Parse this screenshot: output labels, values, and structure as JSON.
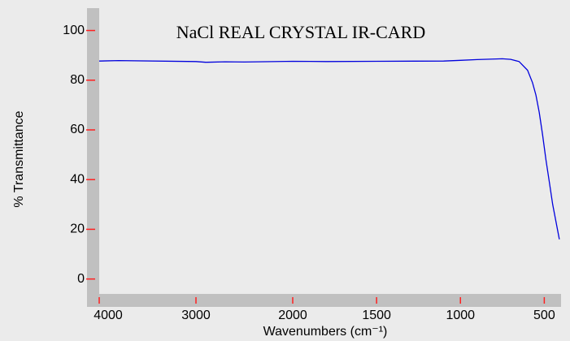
{
  "chart_data": {
    "type": "line",
    "title": "NaCl REAL CRYSTAL IR-CARD",
    "x_label": "Wavenumbers (cm⁻¹)",
    "y_label": "% Transmittance",
    "xlim": [
      4000,
      400
    ],
    "xscale_break": 2000,
    "xticks": [
      4000,
      3000,
      2000,
      1500,
      1000,
      500
    ],
    "ylim": [
      -6,
      109
    ],
    "yticks": [
      0,
      20,
      40,
      60,
      80,
      100
    ],
    "tick_color": "#ff2020",
    "series": [
      {
        "name": "NaCl",
        "color": "#0000dd",
        "x": [
          4000,
          3800,
          3000,
          2900,
          2700,
          2500,
          2000,
          1800,
          1500,
          1100,
          1000,
          900,
          750,
          700,
          650,
          600,
          570,
          550,
          530,
          510,
          490,
          470,
          450,
          430,
          410
        ],
        "values": [
          87.7,
          87.9,
          87.5,
          87.2,
          87.4,
          87.3,
          87.6,
          87.5,
          87.6,
          87.7,
          88.0,
          88.3,
          88.6,
          88.4,
          87.5,
          84,
          79,
          74,
          67,
          58,
          48,
          39,
          30,
          23,
          16
        ]
      }
    ]
  }
}
